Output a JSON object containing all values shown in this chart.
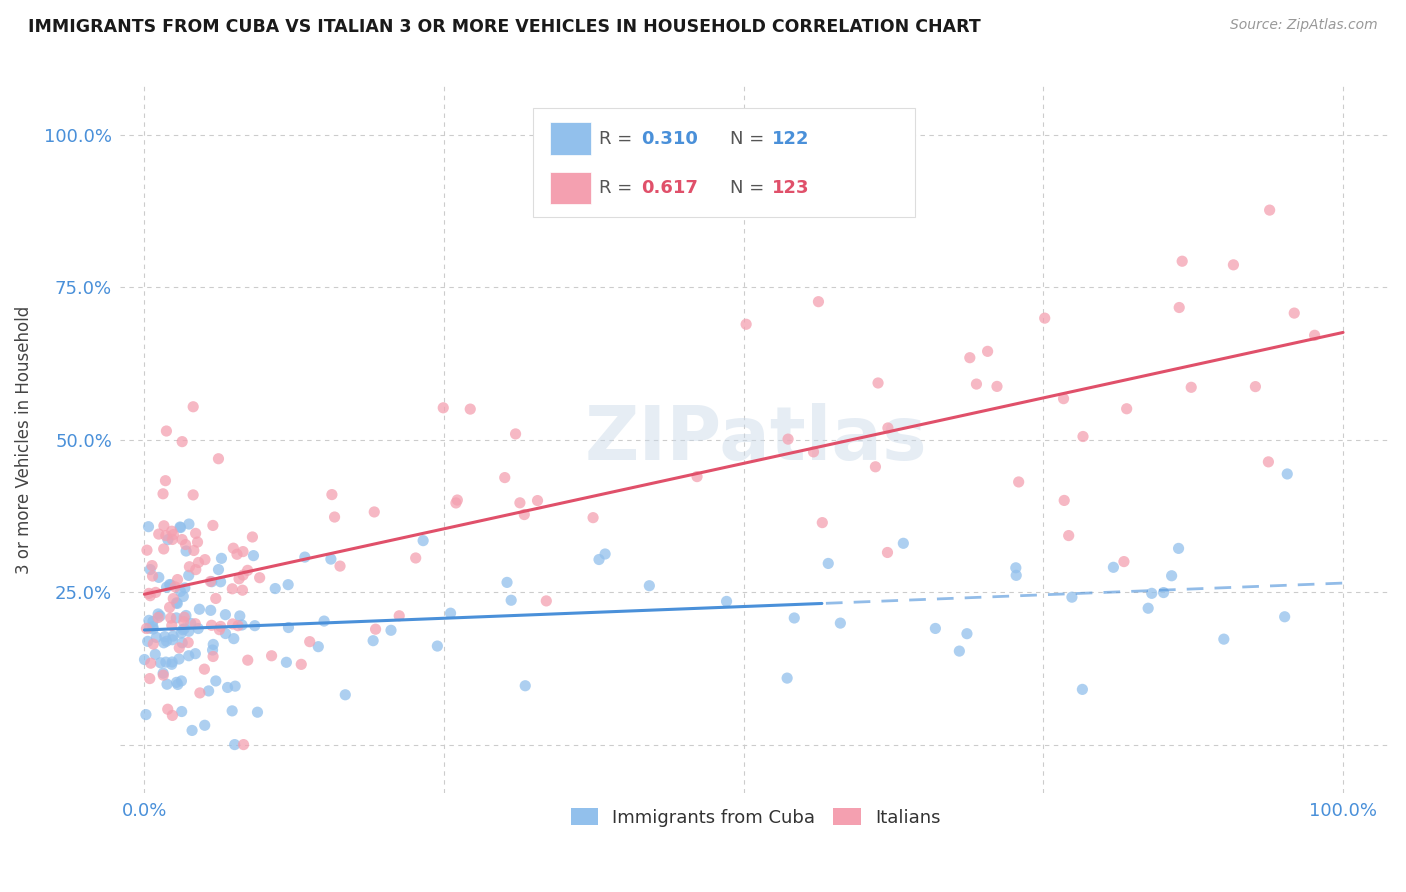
{
  "title": "IMMIGRANTS FROM CUBA VS ITALIAN 3 OR MORE VEHICLES IN HOUSEHOLD CORRELATION CHART",
  "source": "Source: ZipAtlas.com",
  "ylabel": "3 or more Vehicles in Household",
  "watermark": "ZIPatlas",
  "legend_r1": "R = 0.310",
  "legend_n1": "N = 122",
  "legend_r2": "R = 0.617",
  "legend_n2": "N = 123",
  "cuba_color": "#92c0ec",
  "italian_color": "#f4a0b0",
  "cuba_line_color": "#4a90d9",
  "italian_line_color": "#e0506a",
  "title_color": "#222222",
  "axis_label_color": "#4a90d9",
  "grid_color": "#cccccc",
  "background_color": "#ffffff",
  "xlim": [
    -2,
    104
  ],
  "ylim": [
    -8,
    108
  ],
  "yticks": [
    0,
    25,
    50,
    75,
    100
  ],
  "ytick_labels": [
    "",
    "25.0%",
    "50.0%",
    "75.0%",
    "100.0%"
  ],
  "xtick_labels": [
    "0.0%",
    "",
    "",
    "",
    "100.0%"
  ]
}
